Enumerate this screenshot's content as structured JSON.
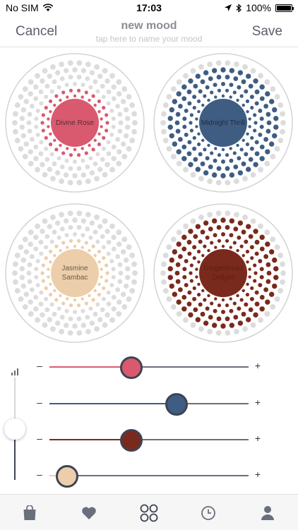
{
  "status_bar": {
    "carrier": "No SIM",
    "time": "17:03",
    "battery": "100%"
  },
  "nav": {
    "cancel_label": "Cancel",
    "title": "new mood",
    "subtitle": "tap here to name your mood",
    "save_label": "Save"
  },
  "scents": [
    {
      "name": "Divine Rose",
      "color": "#d95a6f",
      "label_color": "#5a2a32"
    },
    {
      "name": "Midnight Thrill",
      "color": "#3f5d82",
      "label_color": "#1d2c40"
    },
    {
      "name": "Jasmine\nSambac",
      "color": "#ecceaa",
      "label_color": "#6b5a48"
    },
    {
      "name": "Gingerbread\nDelight",
      "color": "#7a2a1c",
      "label_color": "#5a1f15"
    }
  ],
  "sliders": [
    {
      "color": "#d95a6f",
      "level": 0.41,
      "minus": "–",
      "plus": "+"
    },
    {
      "color": "#3f5d82",
      "level": 0.64,
      "minus": "–",
      "plus": "+"
    },
    {
      "color": "#7a2a1c",
      "level": 0.41,
      "minus": "–",
      "plus": "+"
    },
    {
      "color": "#ecceaa",
      "level": 0.09,
      "minus": "–",
      "plus": "+"
    }
  ],
  "master_level": 0.5,
  "tabs": [
    {
      "icon": "shopping-bag-icon"
    },
    {
      "icon": "heart-icon"
    },
    {
      "icon": "four-circles-icon",
      "active": true
    },
    {
      "icon": "clock-icon"
    },
    {
      "icon": "profile-icon"
    }
  ],
  "theme": {
    "inactive_dot": "#dcdcdc",
    "ring": "#d4d4d4",
    "tab_icon": "#6a6f7c"
  }
}
